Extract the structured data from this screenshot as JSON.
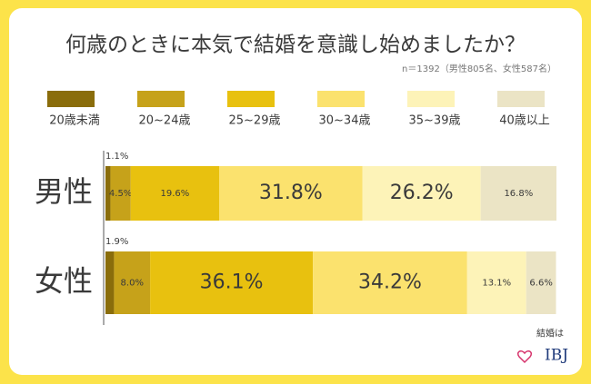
{
  "chart_data": {
    "type": "stacked-bar-horizontal",
    "title": "何歳のときに本気で結婚を意識し始めましたか？",
    "subtitle": "n＝1392（男性805名、女性587名）",
    "categories": [
      "男性",
      "女性"
    ],
    "xlim": [
      0,
      100
    ],
    "series": [
      {
        "name": "20歳未満",
        "color": "#8a6d0b",
        "values": [
          1.1,
          1.9
        ],
        "value_labels": [
          "1.1%",
          "1.9%"
        ]
      },
      {
        "name": "20~24歳",
        "color": "#c6a21a",
        "values": [
          4.5,
          8.0
        ],
        "value_labels": [
          "4.5%",
          "8.0%"
        ]
      },
      {
        "name": "25~29歳",
        "color": "#e8c10f",
        "values": [
          19.6,
          36.1
        ],
        "value_labels": [
          "19.6%",
          "36.1%"
        ]
      },
      {
        "name": "30~34歳",
        "color": "#fbe26e",
        "values": [
          31.8,
          34.2
        ],
        "value_labels": [
          "31.8%",
          "34.2%"
        ]
      },
      {
        "name": "35~39歳",
        "color": "#fdf3b8",
        "values": [
          26.2,
          13.1
        ],
        "value_labels": [
          "26.2%",
          "13.1%"
        ]
      },
      {
        "name": "40歳以上",
        "color": "#ebe4c5",
        "values": [
          16.8,
          6.6
        ],
        "value_labels": [
          "16.8%",
          "6.6%"
        ]
      }
    ]
  },
  "logo": {
    "text": "結婚は",
    "brand": "IBJ"
  }
}
